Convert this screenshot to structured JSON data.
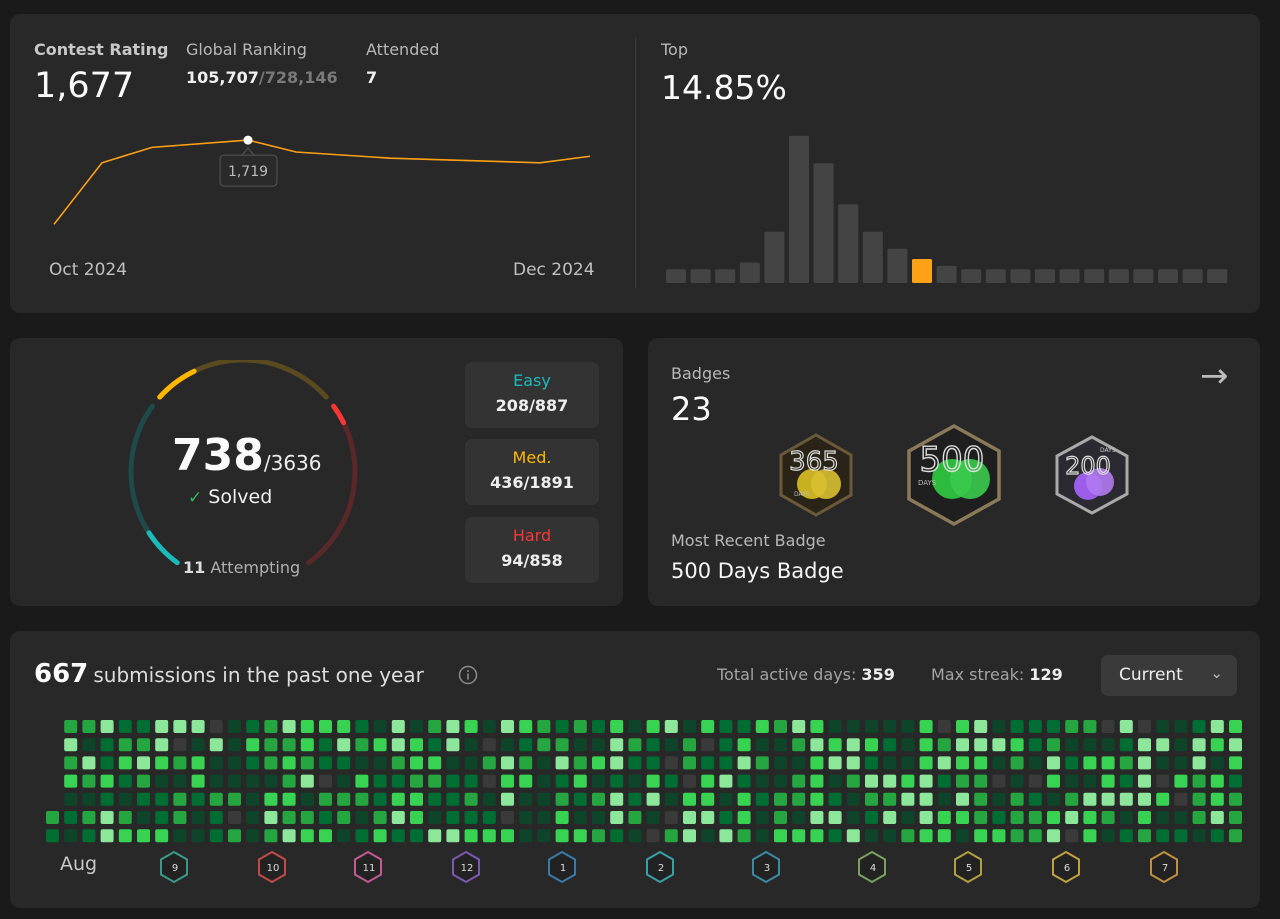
{
  "contest": {
    "rating_label": "Contest Rating",
    "rating_value": "1,677",
    "ranking_label": "Global Ranking",
    "ranking_value": "105,707",
    "ranking_total": "/728,146",
    "attended_label": "Attended",
    "attended_value": "7",
    "tooltip": "1,719",
    "x_start": "Oct 2024",
    "x_end": "Dec 2024",
    "top_label": "Top",
    "top_value": "14.85%",
    "line_color": "#ffa116",
    "highlight_color": "#ffa116"
  },
  "chart_data": [
    {
      "type": "line",
      "x": [
        "Oct 2024",
        "",
        "",
        "",
        "",
        "",
        "",
        "Dec 2024"
      ],
      "values": [
        1500,
        1660,
        1700,
        1719,
        1688,
        1672,
        1660,
        1677
      ],
      "title": "",
      "xlabel": "",
      "ylabel": ""
    },
    {
      "type": "bar",
      "values": [
        4,
        4,
        4,
        6,
        15,
        43,
        35,
        23,
        15,
        10,
        7,
        5,
        4,
        4,
        4,
        4,
        4,
        4,
        4,
        4,
        4,
        4,
        4
      ],
      "highlight_index": 10,
      "title": "",
      "xlabel": "",
      "ylabel": ""
    }
  ],
  "solved": {
    "count": "738",
    "total": "/3636",
    "check": "✓",
    "solved_label": "Solved",
    "attempting_count": "11",
    "attempting_label": "Attempting",
    "easy": {
      "label": "Easy",
      "value": "208/887",
      "solved": 208,
      "total": 887,
      "color": "#1cbaba"
    },
    "medium": {
      "label": "Med.",
      "value": "436/1891",
      "solved": 436,
      "total": 1891,
      "color": "#ffb700"
    },
    "hard": {
      "label": "Hard",
      "value": "94/858",
      "solved": 94,
      "total": 858,
      "color": "#f63737"
    }
  },
  "badges": {
    "label": "Badges",
    "count": "23",
    "arrow": "→",
    "recent_label": "Most Recent Badge",
    "recent_name": "500 Days Badge",
    "items": [
      {
        "icon": "365-days-badge-icon",
        "text": "365",
        "days": "DAYS"
      },
      {
        "icon": "500-days-badge-icon",
        "text": "500",
        "days": "DAYS"
      },
      {
        "icon": "200-days-badge-icon",
        "text": "200",
        "days": "DAYS"
      }
    ]
  },
  "submissions": {
    "count": "667",
    "label": "submissions in the past one year",
    "info_icon": "info-icon",
    "active_days_label": "Total active days:",
    "active_days_value": "359",
    "max_streak_label": "Max streak:",
    "max_streak_value": "129",
    "period": "Current",
    "first_month": "Aug",
    "month_badges": [
      "9",
      "10",
      "11",
      "12",
      "1",
      "2",
      "3",
      "4",
      "5",
      "6",
      "7"
    ]
  }
}
